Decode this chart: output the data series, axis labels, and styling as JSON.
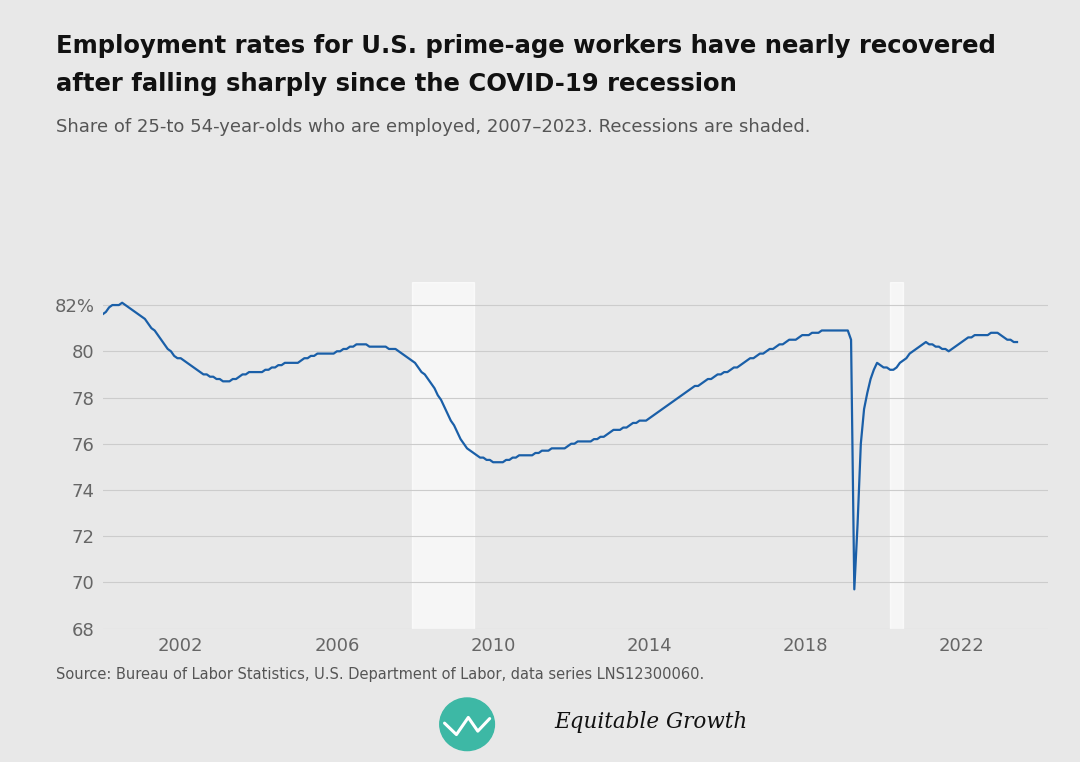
{
  "title_line1": "Employment rates for U.S. prime-age workers have nearly recovered",
  "title_line2": "after falling sharply since the COVID-19 recession",
  "subtitle": "Share of 25-to 54-year-olds who are employed, 2007–2023. Recessions are shaded.",
  "source_text": "Source: Bureau of Labor Statistics, U.S. Department of Labor, data series LNS12300060.",
  "background_color": "#e8e8e8",
  "plot_bg_color": "#e8e8e8",
  "line_color": "#1a5fa8",
  "recession_color": "#ffffff",
  "recession_alpha": 0.65,
  "ylim": [
    68,
    83
  ],
  "yticks": [
    68,
    70,
    72,
    74,
    76,
    78,
    80,
    82
  ],
  "xticks": [
    2002,
    2006,
    2010,
    2014,
    2018,
    2022
  ],
  "recessions": [
    {
      "start": 2007.917,
      "end": 2009.5
    },
    {
      "start": 2020.167,
      "end": 2020.5
    }
  ],
  "dates": [
    2000.0,
    2000.083,
    2000.167,
    2000.25,
    2000.333,
    2000.417,
    2000.5,
    2000.583,
    2000.667,
    2000.75,
    2000.833,
    2000.917,
    2001.0,
    2001.083,
    2001.167,
    2001.25,
    2001.333,
    2001.417,
    2001.5,
    2001.583,
    2001.667,
    2001.75,
    2001.833,
    2001.917,
    2002.0,
    2002.083,
    2002.167,
    2002.25,
    2002.333,
    2002.417,
    2002.5,
    2002.583,
    2002.667,
    2002.75,
    2002.833,
    2002.917,
    2003.0,
    2003.083,
    2003.167,
    2003.25,
    2003.333,
    2003.417,
    2003.5,
    2003.583,
    2003.667,
    2003.75,
    2003.833,
    2003.917,
    2004.0,
    2004.083,
    2004.167,
    2004.25,
    2004.333,
    2004.417,
    2004.5,
    2004.583,
    2004.667,
    2004.75,
    2004.833,
    2004.917,
    2005.0,
    2005.083,
    2005.167,
    2005.25,
    2005.333,
    2005.417,
    2005.5,
    2005.583,
    2005.667,
    2005.75,
    2005.833,
    2005.917,
    2006.0,
    2006.083,
    2006.167,
    2006.25,
    2006.333,
    2006.417,
    2006.5,
    2006.583,
    2006.667,
    2006.75,
    2006.833,
    2006.917,
    2007.0,
    2007.083,
    2007.167,
    2007.25,
    2007.333,
    2007.417,
    2007.5,
    2007.583,
    2007.667,
    2007.75,
    2007.833,
    2007.917,
    2008.0,
    2008.083,
    2008.167,
    2008.25,
    2008.333,
    2008.417,
    2008.5,
    2008.583,
    2008.667,
    2008.75,
    2008.833,
    2008.917,
    2009.0,
    2009.083,
    2009.167,
    2009.25,
    2009.333,
    2009.417,
    2009.5,
    2009.583,
    2009.667,
    2009.75,
    2009.833,
    2009.917,
    2010.0,
    2010.083,
    2010.167,
    2010.25,
    2010.333,
    2010.417,
    2010.5,
    2010.583,
    2010.667,
    2010.75,
    2010.833,
    2010.917,
    2011.0,
    2011.083,
    2011.167,
    2011.25,
    2011.333,
    2011.417,
    2011.5,
    2011.583,
    2011.667,
    2011.75,
    2011.833,
    2011.917,
    2012.0,
    2012.083,
    2012.167,
    2012.25,
    2012.333,
    2012.417,
    2012.5,
    2012.583,
    2012.667,
    2012.75,
    2012.833,
    2012.917,
    2013.0,
    2013.083,
    2013.167,
    2013.25,
    2013.333,
    2013.417,
    2013.5,
    2013.583,
    2013.667,
    2013.75,
    2013.833,
    2013.917,
    2014.0,
    2014.083,
    2014.167,
    2014.25,
    2014.333,
    2014.417,
    2014.5,
    2014.583,
    2014.667,
    2014.75,
    2014.833,
    2014.917,
    2015.0,
    2015.083,
    2015.167,
    2015.25,
    2015.333,
    2015.417,
    2015.5,
    2015.583,
    2015.667,
    2015.75,
    2015.833,
    2015.917,
    2016.0,
    2016.083,
    2016.167,
    2016.25,
    2016.333,
    2016.417,
    2016.5,
    2016.583,
    2016.667,
    2016.75,
    2016.833,
    2016.917,
    2017.0,
    2017.083,
    2017.167,
    2017.25,
    2017.333,
    2017.417,
    2017.5,
    2017.583,
    2017.667,
    2017.75,
    2017.833,
    2017.917,
    2018.0,
    2018.083,
    2018.167,
    2018.25,
    2018.333,
    2018.417,
    2018.5,
    2018.583,
    2018.667,
    2018.75,
    2018.833,
    2018.917,
    2019.0,
    2019.083,
    2019.167,
    2019.25,
    2019.333,
    2019.417,
    2019.5,
    2019.583,
    2019.667,
    2019.75,
    2019.833,
    2019.917,
    2020.0,
    2020.083,
    2020.167,
    2020.25,
    2020.333,
    2020.417,
    2020.5,
    2020.583,
    2020.667,
    2020.75,
    2020.833,
    2020.917,
    2021.0,
    2021.083,
    2021.167,
    2021.25,
    2021.333,
    2021.417,
    2021.5,
    2021.583,
    2021.667,
    2021.75,
    2021.833,
    2021.917,
    2022.0,
    2022.083,
    2022.167,
    2022.25,
    2022.333,
    2022.417,
    2022.5,
    2022.583,
    2022.667,
    2022.75,
    2022.833,
    2022.917,
    2023.0,
    2023.083,
    2023.167,
    2023.25,
    2023.333,
    2023.417,
    2023.5,
    2023.583,
    2023.667,
    2023.75,
    2023.833,
    2023.917
  ],
  "values": [
    81.6,
    81.7,
    81.9,
    82.0,
    82.0,
    82.0,
    82.1,
    82.0,
    81.9,
    81.8,
    81.7,
    81.6,
    81.5,
    81.4,
    81.2,
    81.0,
    80.9,
    80.7,
    80.5,
    80.3,
    80.1,
    80.0,
    79.8,
    79.7,
    79.7,
    79.6,
    79.5,
    79.4,
    79.3,
    79.2,
    79.1,
    79.0,
    79.0,
    78.9,
    78.9,
    78.8,
    78.8,
    78.7,
    78.7,
    78.7,
    78.8,
    78.8,
    78.9,
    79.0,
    79.0,
    79.1,
    79.1,
    79.1,
    79.1,
    79.1,
    79.2,
    79.2,
    79.3,
    79.3,
    79.4,
    79.4,
    79.5,
    79.5,
    79.5,
    79.5,
    79.5,
    79.6,
    79.7,
    79.7,
    79.8,
    79.8,
    79.9,
    79.9,
    79.9,
    79.9,
    79.9,
    79.9,
    80.0,
    80.0,
    80.1,
    80.1,
    80.2,
    80.2,
    80.3,
    80.3,
    80.3,
    80.3,
    80.2,
    80.2,
    80.2,
    80.2,
    80.2,
    80.2,
    80.1,
    80.1,
    80.1,
    80.0,
    79.9,
    79.8,
    79.7,
    79.6,
    79.5,
    79.3,
    79.1,
    79.0,
    78.8,
    78.6,
    78.4,
    78.1,
    77.9,
    77.6,
    77.3,
    77.0,
    76.8,
    76.5,
    76.2,
    76.0,
    75.8,
    75.7,
    75.6,
    75.5,
    75.4,
    75.4,
    75.3,
    75.3,
    75.2,
    75.2,
    75.2,
    75.2,
    75.3,
    75.3,
    75.4,
    75.4,
    75.5,
    75.5,
    75.5,
    75.5,
    75.5,
    75.6,
    75.6,
    75.7,
    75.7,
    75.7,
    75.8,
    75.8,
    75.8,
    75.8,
    75.8,
    75.9,
    76.0,
    76.0,
    76.1,
    76.1,
    76.1,
    76.1,
    76.1,
    76.2,
    76.2,
    76.3,
    76.3,
    76.4,
    76.5,
    76.6,
    76.6,
    76.6,
    76.7,
    76.7,
    76.8,
    76.9,
    76.9,
    77.0,
    77.0,
    77.0,
    77.1,
    77.2,
    77.3,
    77.4,
    77.5,
    77.6,
    77.7,
    77.8,
    77.9,
    78.0,
    78.1,
    78.2,
    78.3,
    78.4,
    78.5,
    78.5,
    78.6,
    78.7,
    78.8,
    78.8,
    78.9,
    79.0,
    79.0,
    79.1,
    79.1,
    79.2,
    79.3,
    79.3,
    79.4,
    79.5,
    79.6,
    79.7,
    79.7,
    79.8,
    79.9,
    79.9,
    80.0,
    80.1,
    80.1,
    80.2,
    80.3,
    80.3,
    80.4,
    80.5,
    80.5,
    80.5,
    80.6,
    80.7,
    80.7,
    80.7,
    80.8,
    80.8,
    80.8,
    80.9,
    80.9,
    80.9,
    80.9,
    80.9,
    80.9,
    80.9,
    80.9,
    80.9,
    80.5,
    69.7,
    72.5,
    76.0,
    77.5,
    78.2,
    78.8,
    79.2,
    79.5,
    79.4,
    79.3,
    79.3,
    79.2,
    79.2,
    79.3,
    79.5,
    79.6,
    79.7,
    79.9,
    80.0,
    80.1,
    80.2,
    80.3,
    80.4,
    80.3,
    80.3,
    80.2,
    80.2,
    80.1,
    80.1,
    80.0,
    80.1,
    80.2,
    80.3,
    80.4,
    80.5,
    80.6,
    80.6,
    80.7,
    80.7,
    80.7,
    80.7,
    80.7,
    80.8,
    80.8,
    80.8,
    80.7,
    80.6,
    80.5,
    80.5,
    80.4,
    80.4
  ]
}
